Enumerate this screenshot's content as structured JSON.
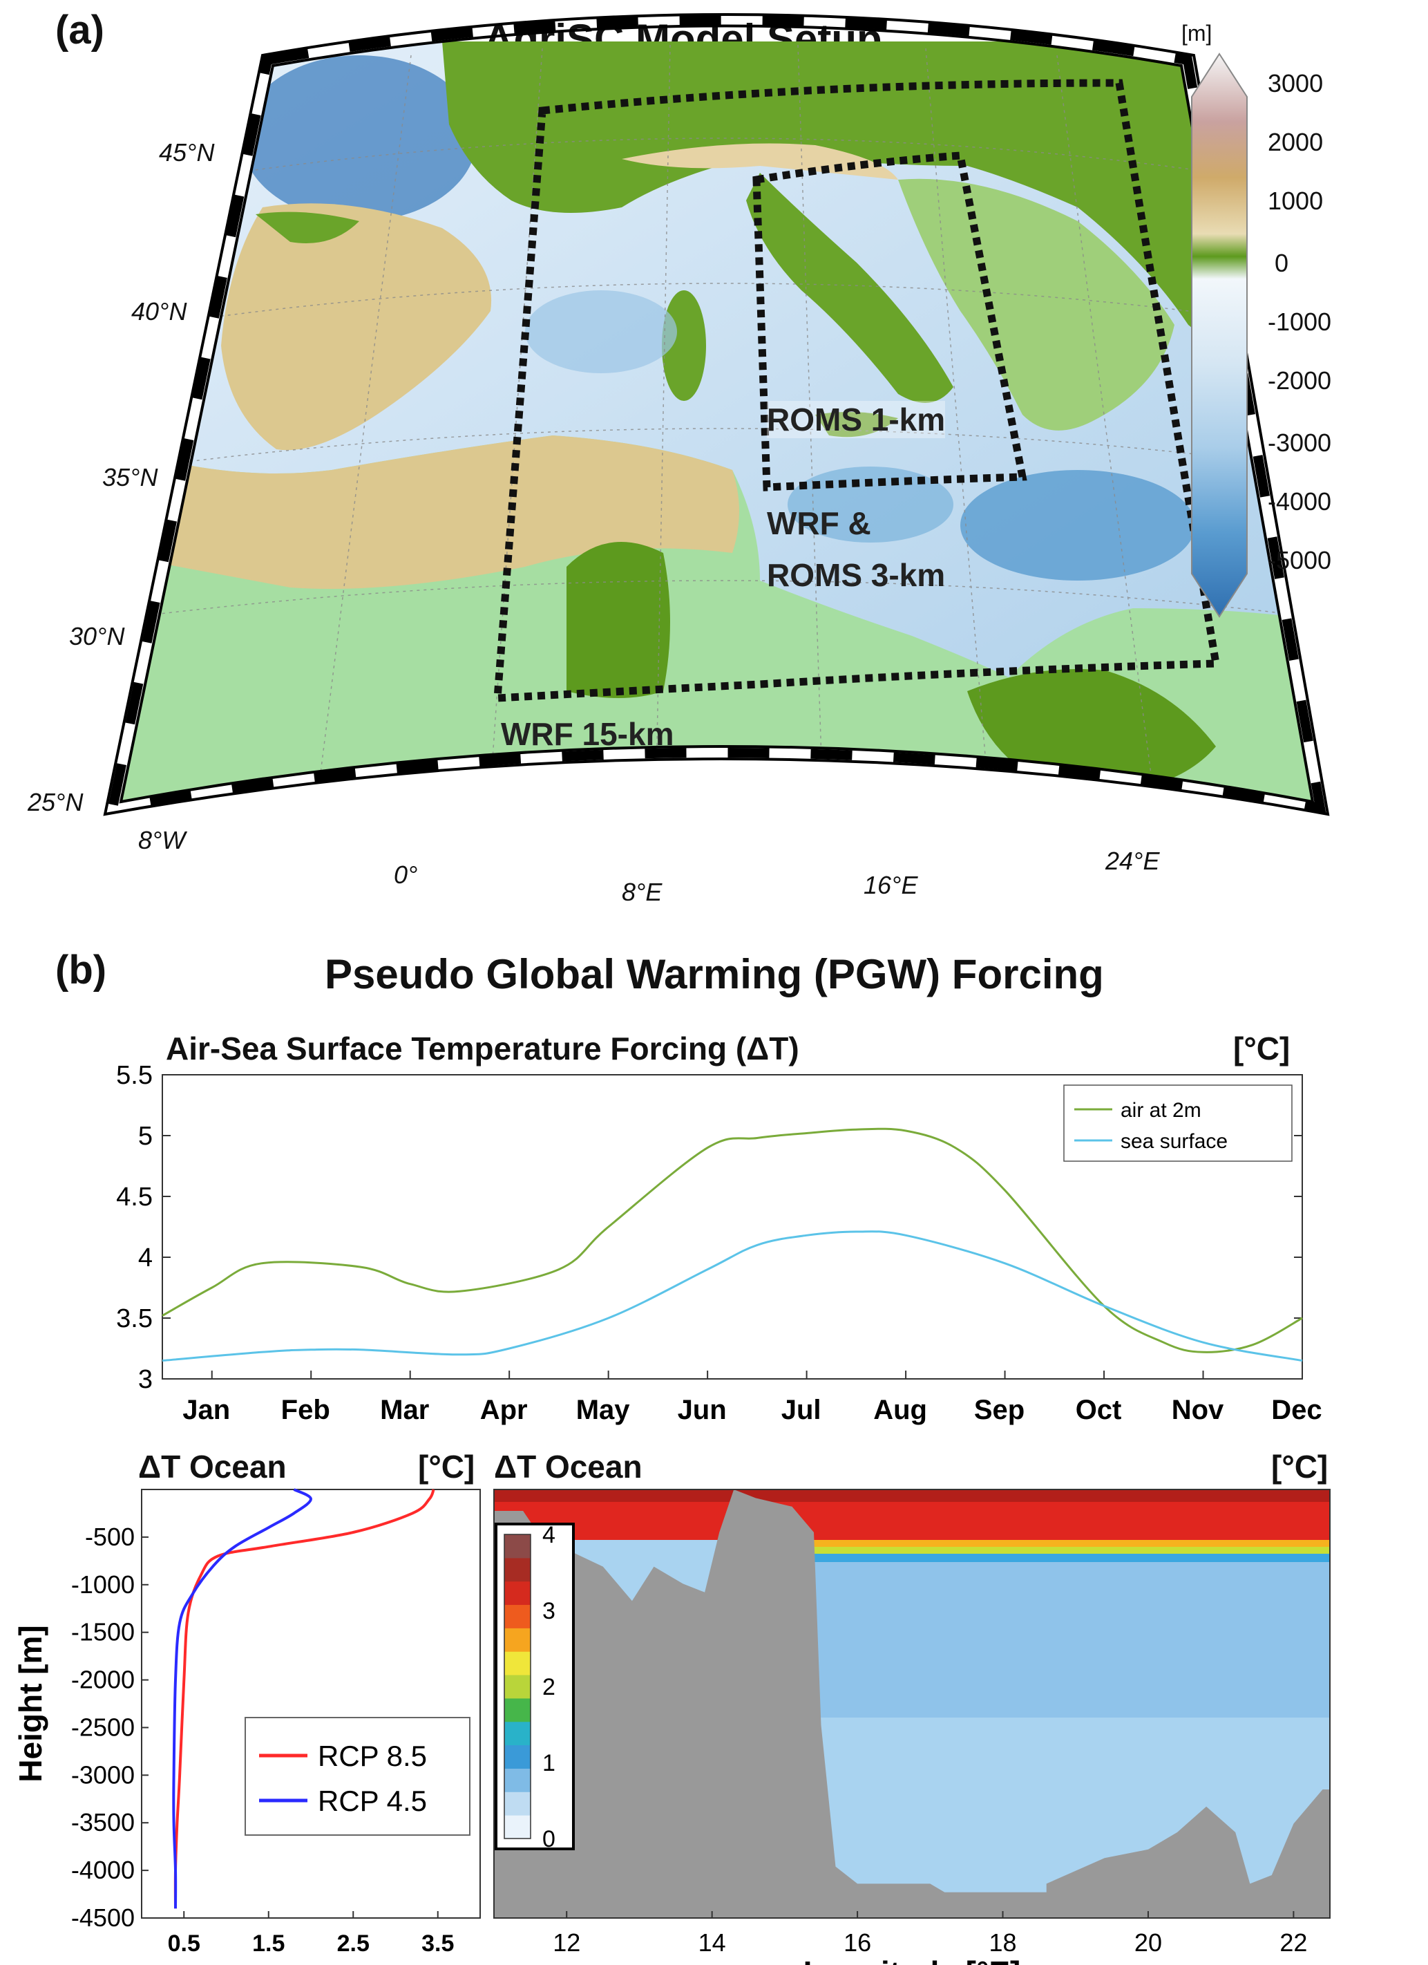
{
  "panel_a": {
    "label": "(a)",
    "title": "AdriSC Model Setup",
    "colorbar": {
      "unit": "[m]",
      "ticks": [
        "3000",
        "2000",
        "1000",
        "0",
        "-1000",
        "-2000",
        "-3000",
        "-4000",
        "-5000"
      ]
    },
    "lat_labels": [
      "45°N",
      "40°N",
      "35°N",
      "30°N",
      "25°N"
    ],
    "lon_labels": [
      "8°W",
      "0°",
      "8°E",
      "16°E",
      "24°E"
    ],
    "domain_labels": {
      "roms1": "ROMS 1-km",
      "wrf3_line1": "WRF &",
      "wrf3_line2": "ROMS 3-km",
      "wrf15": "WRF 15-km"
    },
    "colors": {
      "sea_deep": "#2f6fb0",
      "sea_shallow": "#dcebf7",
      "land_low": "#5a9a1c",
      "land_mid": "#e8d6a8",
      "land_high": "#c9a27a"
    }
  },
  "panel_b": {
    "label": "(b)",
    "title": "Pseudo Global Warming (PGW) Forcing"
  },
  "chart_data": [
    {
      "type": "line",
      "title": "Air-Sea Surface Temperature Forcing  (ΔT)",
      "unit": "[°C]",
      "categories": [
        "Jan",
        "Feb",
        "Mar",
        "Apr",
        "May",
        "Jun",
        "Jul",
        "Aug",
        "Sep",
        "Oct",
        "Nov",
        "Dec"
      ],
      "yticks": [
        "3",
        "3.5",
        "4",
        "4.5",
        "5",
        "5.5"
      ],
      "ylim": [
        3,
        5.5
      ],
      "legend_position": "top-right",
      "series": [
        {
          "name": "air at 2m",
          "color": "#7aab3a",
          "x": [
            0.5,
            1.0,
            1.5,
            2.5,
            3.0,
            3.5,
            4.5,
            5.0,
            6.0,
            6.5,
            7.0,
            7.5,
            8.0,
            8.5,
            9.0,
            10.0,
            10.6,
            11.0,
            11.5,
            12.0
          ],
          "values": [
            3.52,
            3.75,
            3.95,
            3.92,
            3.78,
            3.72,
            3.9,
            4.25,
            4.9,
            4.98,
            5.02,
            5.05,
            5.04,
            4.9,
            4.55,
            3.6,
            3.3,
            3.22,
            3.28,
            3.5
          ]
        },
        {
          "name": "sea surface",
          "color": "#5bc3e8",
          "x": [
            0.5,
            1.5,
            2.0,
            2.5,
            3.5,
            4.0,
            5.0,
            6.0,
            6.5,
            7.0,
            7.5,
            8.0,
            9.0,
            10.0,
            11.0,
            12.0
          ],
          "values": [
            3.15,
            3.22,
            3.24,
            3.24,
            3.2,
            3.25,
            3.5,
            3.9,
            4.1,
            4.18,
            4.21,
            4.18,
            3.95,
            3.6,
            3.3,
            3.15
          ]
        }
      ]
    },
    {
      "type": "line",
      "title": "ΔT Ocean",
      "unit": "[°C]",
      "ylabel": "Height [m]",
      "xticks": [
        "0.5",
        "1.5",
        "2.5",
        "3.5"
      ],
      "yticks": [
        "-500",
        "-1000",
        "-1500",
        "-2000",
        "-2500",
        "-3000",
        "-3500",
        "-4000",
        "-4500"
      ],
      "xlim": [
        0,
        4
      ],
      "ylim": [
        -4500,
        0
      ],
      "legend_position": "bottom-left",
      "series": [
        {
          "name": "RCP 8.5",
          "color": "#ff2a2a",
          "x": [
            3.45,
            3.4,
            3.2,
            2.5,
            1.5,
            0.9,
            0.7,
            0.55,
            0.5,
            0.45,
            0.42,
            0.4,
            0.4
          ],
          "y": [
            0,
            -100,
            -250,
            -450,
            -600,
            -700,
            -900,
            -1300,
            -2000,
            -3000,
            -3500,
            -4000,
            -4400
          ]
        },
        {
          "name": "RCP 4.5",
          "color": "#2a2aff",
          "x": [
            1.8,
            2.0,
            1.8,
            1.5,
            1.1,
            0.85,
            0.6,
            0.45,
            0.4,
            0.38,
            0.38,
            0.4,
            0.4
          ],
          "y": [
            0,
            -100,
            -250,
            -400,
            -600,
            -800,
            -1100,
            -1400,
            -2000,
            -3000,
            -3500,
            -4000,
            -4400
          ]
        }
      ]
    },
    {
      "type": "heatmap",
      "title": "ΔT Ocean",
      "unit": "[°C]",
      "xlabel": "Longitude [°E]",
      "xticks": [
        "12",
        "14",
        "16",
        "18",
        "20",
        "22"
      ],
      "xlim": [
        11,
        22.5
      ],
      "colorbar_ticks": [
        "4",
        "3",
        "2",
        "1",
        "0"
      ],
      "colorbar_range": [
        0,
        4
      ]
    }
  ]
}
